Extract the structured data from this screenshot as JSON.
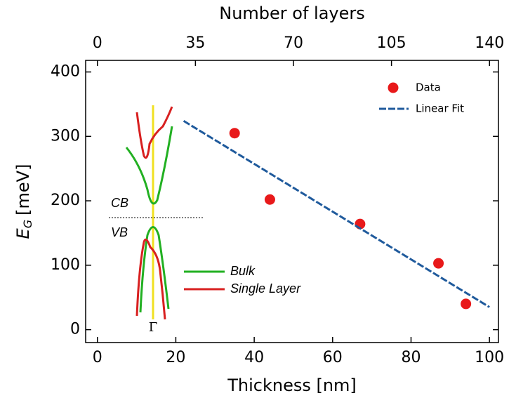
{
  "chart_data": {
    "type": "scatter",
    "xlabel": "Thickness [nm]",
    "ylabel": {
      "symbol": "E",
      "subscript": "G",
      "unit": "[meV]"
    },
    "x2label": "Number of layers",
    "xlim": [
      -3,
      102.3
    ],
    "xticks": [
      0,
      20,
      40,
      60,
      80,
      100
    ],
    "ylim": [
      -20,
      418
    ],
    "yticks": [
      0,
      100,
      200,
      300,
      400
    ],
    "x2lim": [
      -4.2,
      143.2
    ],
    "x2ticks": [
      0,
      35,
      70,
      105,
      140
    ],
    "series": [
      {
        "name": "Data",
        "style": "marker",
        "color": "#e8191a",
        "x": [
          35,
          44,
          67,
          87,
          94
        ],
        "values": [
          305,
          202,
          164,
          103,
          40
        ]
      },
      {
        "name": "Linear Fit",
        "style": "dashed-line",
        "color": "#1f5a9c",
        "x": [
          22,
          100
        ],
        "values": [
          324,
          35
        ]
      }
    ],
    "inset": {
      "cb": "CB",
      "vb": "VB",
      "gamma": "Γ",
      "bulk": "Bulk",
      "single": "Single Layer"
    }
  }
}
